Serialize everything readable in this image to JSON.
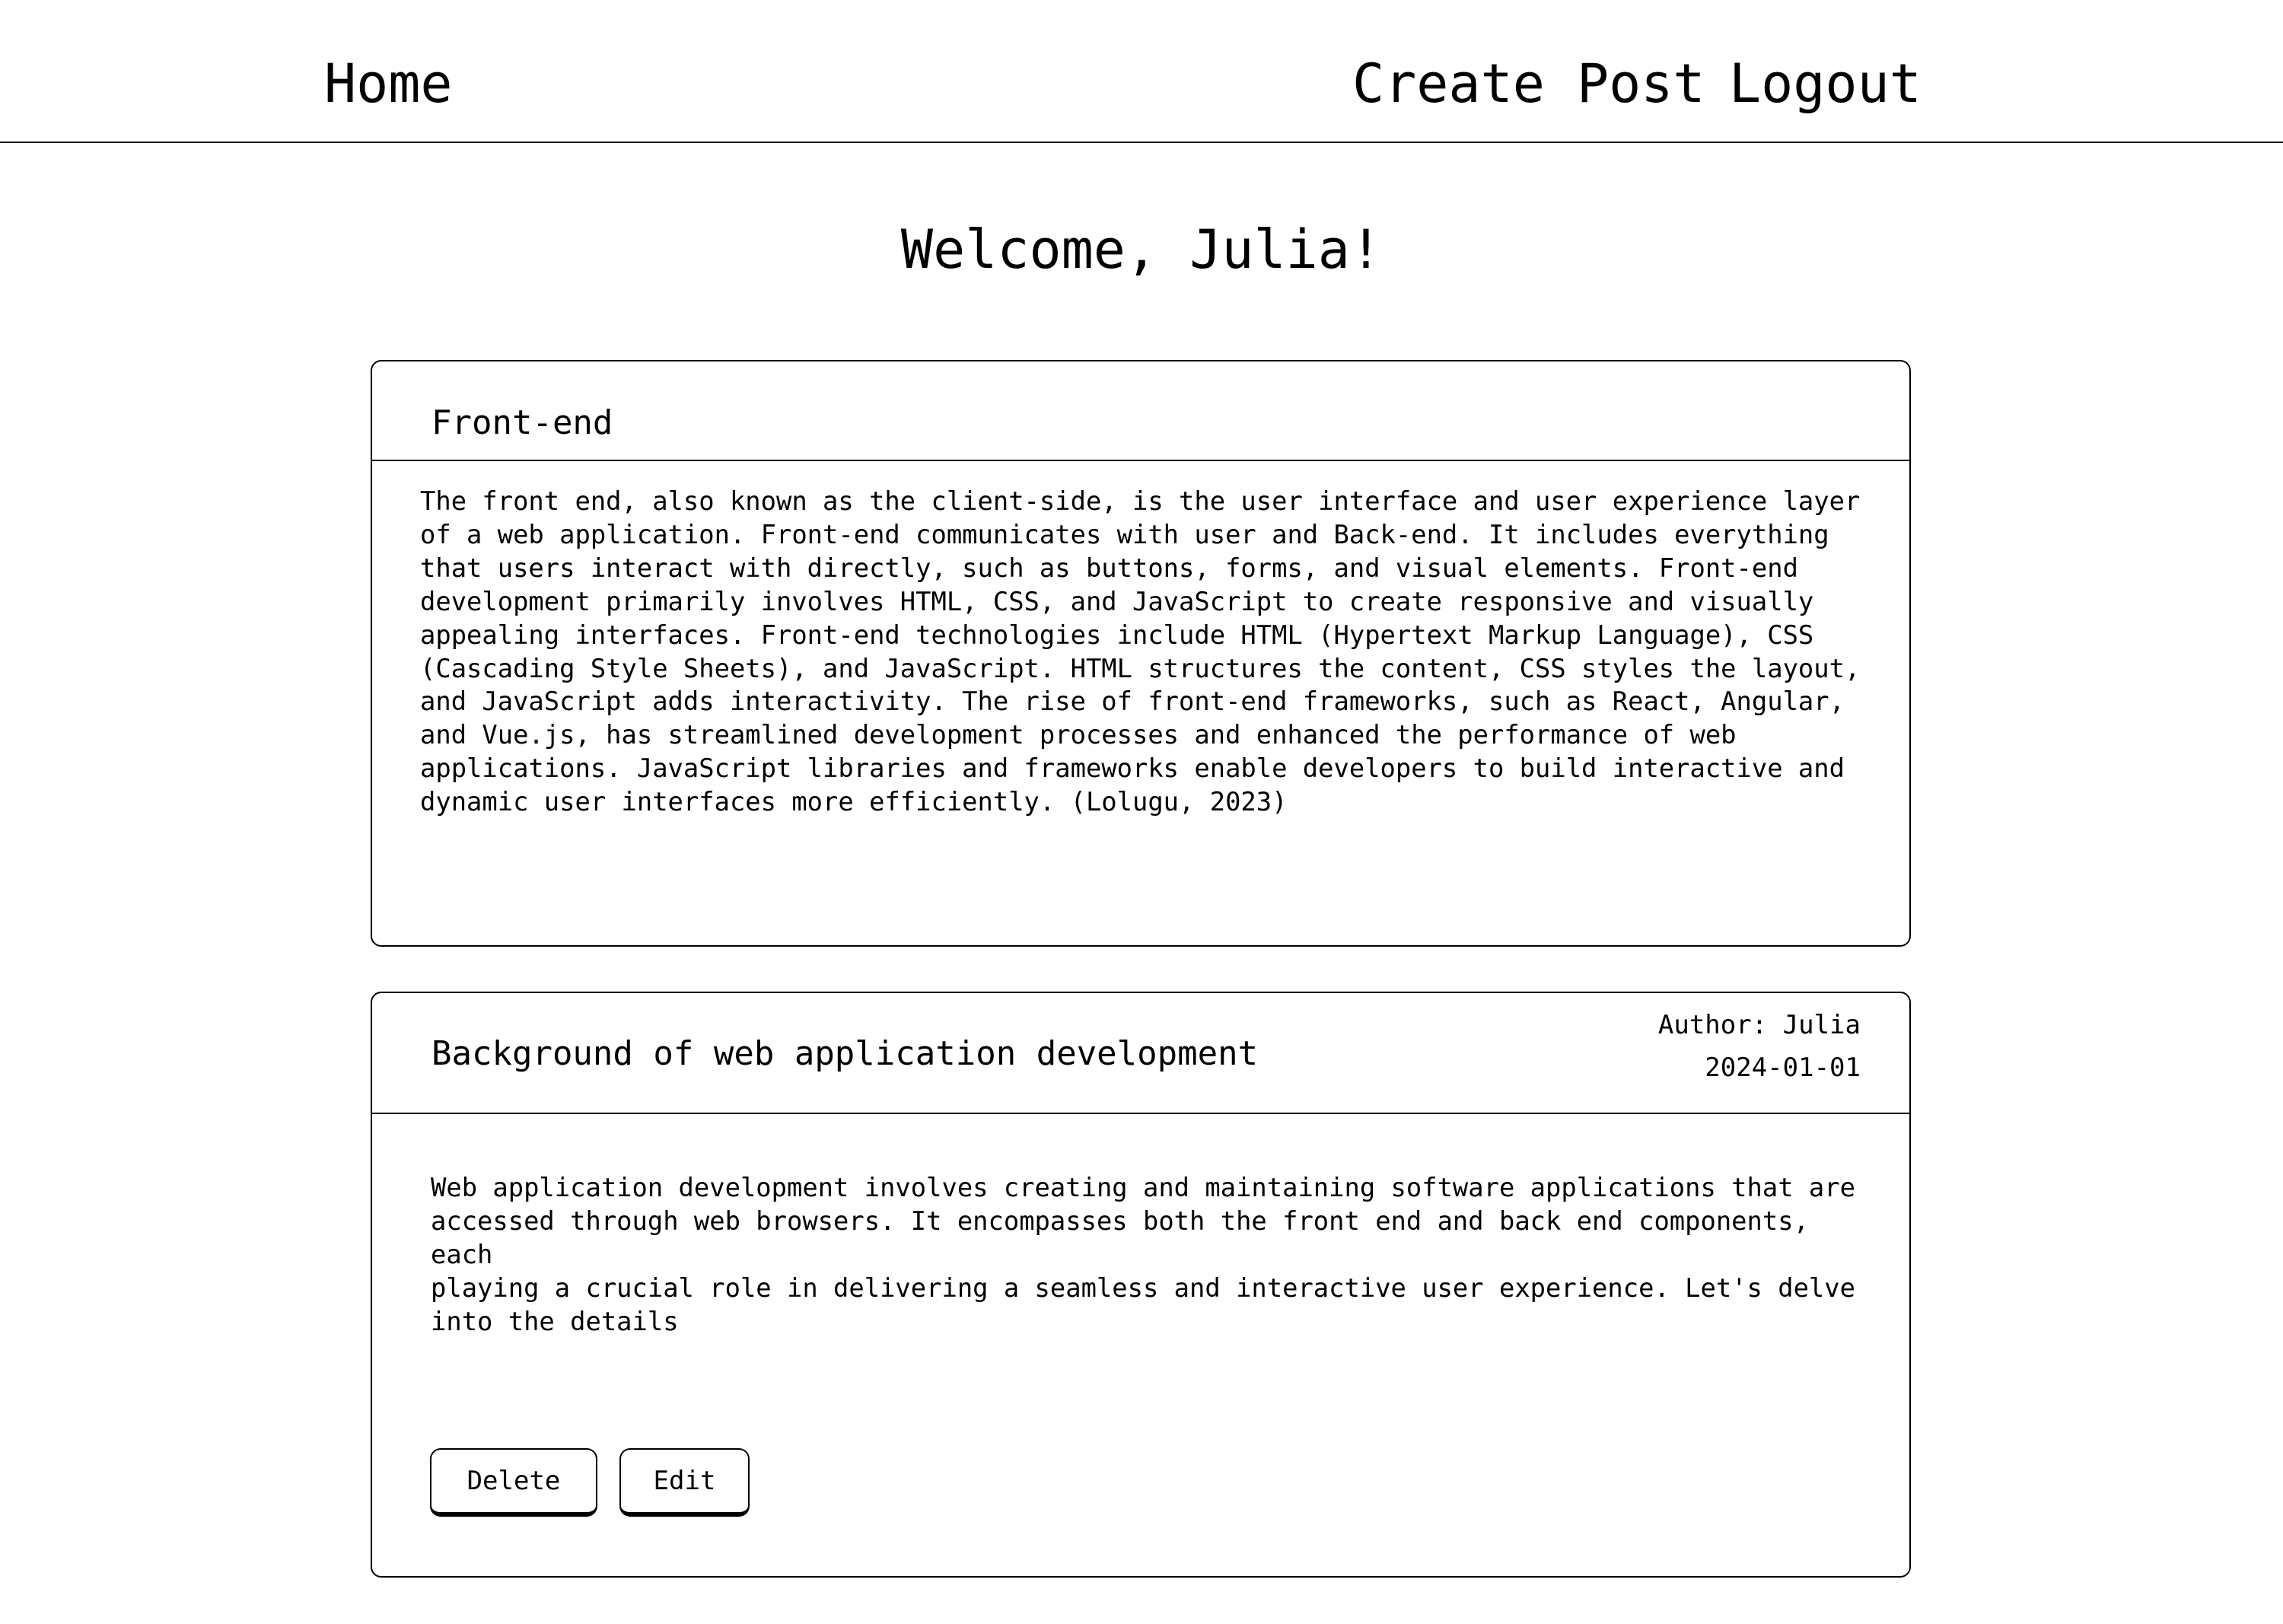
{
  "nav": {
    "home": "Home",
    "create_post": "Create Post",
    "logout": "Logout"
  },
  "welcome": "Welcome, Julia!",
  "posts": [
    {
      "title": "Front-end",
      "body": "The front end, also known as the client-side, is the user interface and user experience layer\nof a web application. Front-end communicates with user and Back-end. It includes everything\nthat users interact with directly, such as buttons, forms, and visual elements. Front-end\ndevelopment primarily involves HTML, CSS, and JavaScript to create responsive and visually\nappealing interfaces. Front-end technologies include HTML (Hypertext Markup Language), CSS\n(Cascading Style Sheets), and JavaScript. HTML structures the content, CSS styles the layout,\nand JavaScript adds interactivity. The rise of front-end frameworks, such as React, Angular,\nand Vue.js, has streamlined development processes and enhanced the performance of web\napplications. JavaScript libraries and frameworks enable developers to build interactive and\ndynamic user interfaces more efficiently. (Lolugu, 2023)"
    },
    {
      "title": "Background of web application development",
      "author": "Author: Julia",
      "date": "2024-01-01",
      "body": "Web application development involves creating and maintaining software applications that are\naccessed through web browsers. It encompasses both the front end and back end components, each\nplaying a crucial role in delivering a seamless and interactive user experience. Let's delve\ninto the details",
      "delete_label": "Delete",
      "edit_label": "Edit"
    }
  ]
}
